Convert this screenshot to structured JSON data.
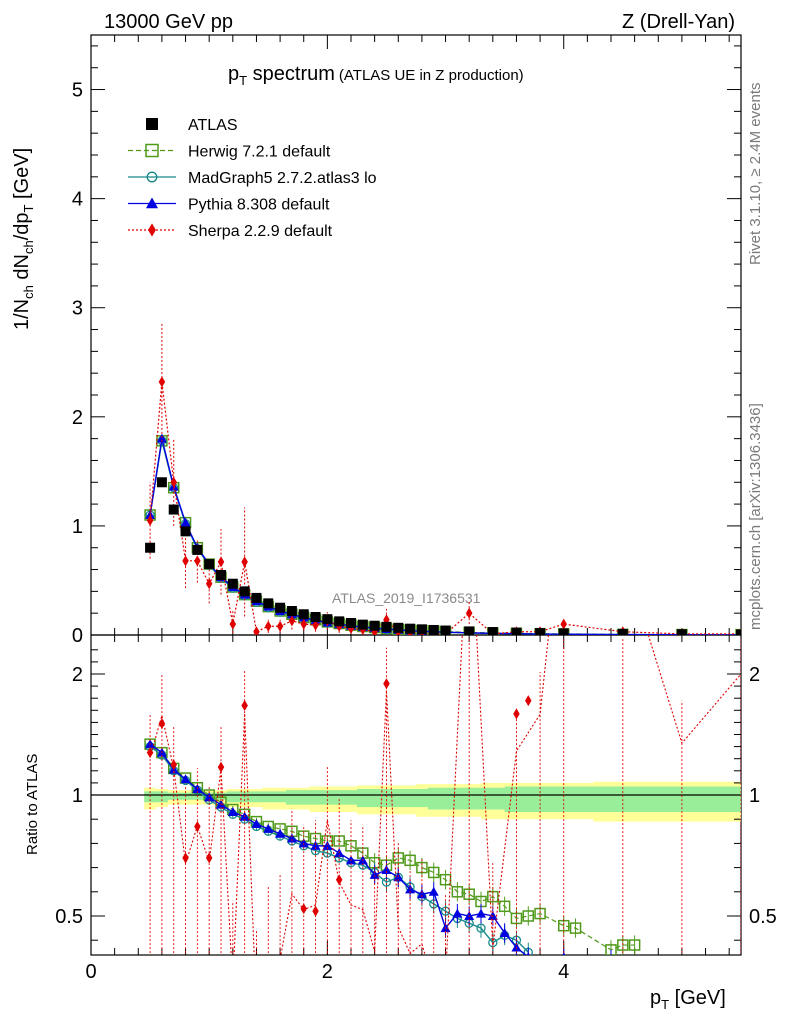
{
  "header": {
    "left": "13000 GeV pp",
    "right": "Z (Drell-Yan)"
  },
  "title": {
    "main": "p",
    "main_sub": "T",
    "main_rest": " spectrum",
    "aside": "(ATLAS UE in Z production)"
  },
  "side_labels": {
    "rivet": "Rivet 3.1.10, ≥ 2.4M events",
    "mcplots": "mcplots.cern.ch [arXiv:1306.3436]"
  },
  "watermark": "ATLAS_2019_I1736531",
  "axes": {
    "ylabel_top": "1/N_ch dN_ch/dp_T [GeV]",
    "ylabel_bottom": "Ratio to ATLAS",
    "xlabel": "p_T [GeV]"
  },
  "legend": [
    {
      "label": "ATLAS",
      "color": "#000000",
      "marker": "square-filled",
      "line": "none"
    },
    {
      "label": "Herwig 7.2.1 default",
      "color": "#4f9a1a",
      "marker": "square-open",
      "line": "dashed"
    },
    {
      "label": "MadGraph5 2.7.2.atlas3 lo",
      "color": "#178a8a",
      "marker": "circle-open",
      "line": "solid"
    },
    {
      "label": "Pythia 8.308 default",
      "color": "#0000e0",
      "marker": "triangle-filled",
      "line": "solid"
    },
    {
      "label": "Sherpa 2.2.9 default",
      "color": "#e00000",
      "marker": "diamond-filled",
      "line": "dotted"
    }
  ],
  "chart_data": {
    "type": "line",
    "xlim": [
      0,
      5.5
    ],
    "top_panel": {
      "ylim": [
        0,
        5.5
      ],
      "yticks": [
        "0",
        "1",
        "2",
        "3",
        "4",
        "5"
      ],
      "xticks": [
        "0",
        "2",
        "4"
      ],
      "x": [
        0.5,
        0.6,
        0.7,
        0.8,
        0.9,
        1.0,
        1.1,
        1.2,
        1.3,
        1.4,
        1.5,
        1.6,
        1.7,
        1.8,
        1.9,
        2.0,
        2.1,
        2.2,
        2.3,
        2.4,
        2.5,
        2.6,
        2.7,
        2.8,
        2.9,
        3.0,
        3.2,
        3.4,
        3.6,
        3.8,
        4.0,
        4.5,
        5.0,
        5.5
      ],
      "series": [
        {
          "name": "ATLAS",
          "values": [
            0.8,
            1.4,
            1.15,
            0.95,
            0.78,
            0.65,
            0.55,
            0.47,
            0.4,
            0.34,
            0.29,
            0.25,
            0.22,
            0.19,
            0.165,
            0.145,
            0.125,
            0.11,
            0.095,
            0.085,
            0.075,
            0.066,
            0.058,
            0.052,
            0.046,
            0.041,
            0.033,
            0.027,
            0.022,
            0.018,
            0.015,
            0.01,
            0.007,
            0.005
          ]
        },
        {
          "name": "Herwig 7.2.1 default",
          "values": [
            1.1,
            1.78,
            1.35,
            1.03,
            0.8,
            0.65,
            0.53,
            0.44,
            0.37,
            0.31,
            0.26,
            0.22,
            0.19,
            0.16,
            0.14,
            0.12,
            0.105,
            0.09,
            0.078,
            0.068,
            0.06,
            0.052,
            0.045,
            0.04,
            0.035,
            0.031,
            0.024,
            0.019,
            0.015,
            0.012,
            0.01,
            0.006,
            0.004,
            0.003
          ]
        },
        {
          "name": "MadGraph5 2.7.2.atlas3 lo",
          "values": [
            1.1,
            1.78,
            1.35,
            1.02,
            0.79,
            0.64,
            0.52,
            0.43,
            0.36,
            0.3,
            0.25,
            0.21,
            0.18,
            0.155,
            0.13,
            0.11,
            0.095,
            0.082,
            0.07,
            0.06,
            0.052,
            0.044,
            0.038,
            0.033,
            0.029,
            0.025,
            0.019,
            0.014,
            0.011,
            0.008,
            0.006,
            0.003,
            0.002,
            0.001
          ]
        },
        {
          "name": "Pythia 8.308 default",
          "values": [
            1.1,
            1.8,
            1.36,
            1.03,
            0.8,
            0.65,
            0.53,
            0.44,
            0.37,
            0.31,
            0.26,
            0.22,
            0.19,
            0.16,
            0.135,
            0.115,
            0.098,
            0.085,
            0.073,
            0.063,
            0.055,
            0.047,
            0.04,
            0.035,
            0.03,
            0.026,
            0.02,
            0.015,
            0.012,
            0.009,
            0.007,
            0.004,
            0.002,
            0.001
          ]
        },
        {
          "name": "Sherpa 2.2.9 default",
          "values": [
            1.05,
            2.32,
            1.4,
            0.68,
            0.68,
            0.47,
            0.67,
            0.1,
            0.67,
            0.03,
            0.08,
            0.08,
            0.13,
            0.1,
            0.09,
            0.13,
            0.08,
            0.06,
            0.05,
            0.03,
            0.14,
            0.03,
            0.02,
            0.02,
            0.01,
            0.01,
            0.2,
            0.01,
            0.03,
            0.03,
            0.1,
            0.03,
            0.01,
            0.01
          ]
        }
      ],
      "sherpa_errors": [
        0.35,
        0.55,
        0.4,
        0.25,
        0.2,
        0.18,
        0.3,
        0.12,
        0.5,
        0.05,
        0.06,
        0.06,
        0.08,
        0.06,
        0.06,
        0.08,
        0.06,
        0.04,
        0.04,
        0.03,
        0.1,
        0.03,
        0.02,
        0.02,
        0.01,
        0.01,
        0.1,
        0.01,
        0.02,
        0.02,
        0.05,
        0.02,
        0.01,
        0.01
      ]
    },
    "ratio_panel": {
      "ylim": [
        0.33,
        2.3
      ],
      "yticks": [
        "0.5",
        "1",
        "2"
      ],
      "xticks": [
        "0",
        "2",
        "4"
      ],
      "band_outer": [
        0.94,
        0.95,
        0.96,
        0.96,
        0.96,
        0.96,
        0.96,
        0.95,
        0.95,
        0.95,
        0.94,
        0.94,
        0.94,
        0.94,
        0.93,
        0.93,
        0.93,
        0.93,
        0.92,
        0.92,
        0.92,
        0.92,
        0.92,
        0.91,
        0.91,
        0.91,
        0.91,
        0.9,
        0.9,
        0.9,
        0.9,
        0.89,
        0.89,
        0.89
      ],
      "band_inner": [
        0.97,
        0.97,
        0.98,
        0.98,
        0.98,
        0.98,
        0.98,
        0.97,
        0.97,
        0.97,
        0.97,
        0.97,
        0.96,
        0.96,
        0.96,
        0.96,
        0.96,
        0.96,
        0.95,
        0.95,
        0.95,
        0.95,
        0.95,
        0.95,
        0.94,
        0.94,
        0.94,
        0.94,
        0.93,
        0.93,
        0.93,
        0.93,
        0.93,
        0.93
      ],
      "series": [
        {
          "name": "Herwig 7.2.1 default",
          "x": [
            0.5,
            0.6,
            0.7,
            0.8,
            0.9,
            1.0,
            1.1,
            1.2,
            1.3,
            1.4,
            1.5,
            1.6,
            1.7,
            1.8,
            1.9,
            2.0,
            2.1,
            2.2,
            2.3,
            2.4,
            2.5,
            2.6,
            2.7,
            2.8,
            2.9,
            3.0,
            3.1,
            3.2,
            3.3,
            3.4,
            3.5,
            3.6,
            3.7,
            3.8,
            4.0,
            4.1,
            4.4,
            4.5,
            4.6
          ],
          "values": [
            1.42,
            1.35,
            1.22,
            1.14,
            1.06,
            1.0,
            0.97,
            0.94,
            0.92,
            0.89,
            0.87,
            0.86,
            0.85,
            0.83,
            0.82,
            0.81,
            0.81,
            0.79,
            0.76,
            0.72,
            0.71,
            0.74,
            0.73,
            0.7,
            0.68,
            0.65,
            0.6,
            0.59,
            0.56,
            0.58,
            0.54,
            0.49,
            0.5,
            0.51,
            0.46,
            0.45,
            0.36,
            0.38,
            0.38
          ]
        },
        {
          "name": "MadGraph5 2.7.2.atlas3 lo",
          "x": [
            0.5,
            0.6,
            0.7,
            0.8,
            0.9,
            1.0,
            1.1,
            1.2,
            1.3,
            1.4,
            1.5,
            1.6,
            1.7,
            1.8,
            1.9,
            2.0,
            2.1,
            2.2,
            2.3,
            2.4,
            2.5,
            2.6,
            2.7,
            2.8,
            2.9,
            3.0,
            3.1,
            3.2,
            3.3,
            3.4,
            3.5,
            3.6,
            3.7
          ],
          "values": [
            1.4,
            1.33,
            1.2,
            1.12,
            1.04,
            0.98,
            0.95,
            0.92,
            0.9,
            0.87,
            0.85,
            0.83,
            0.81,
            0.79,
            0.77,
            0.76,
            0.74,
            0.72,
            0.71,
            0.68,
            0.64,
            0.66,
            0.62,
            0.58,
            0.55,
            0.52,
            0.49,
            0.47,
            0.45,
            0.39,
            0.42,
            0.4,
            0.35
          ]
        },
        {
          "name": "Pythia 8.308 default",
          "x": [
            0.5,
            0.6,
            0.7,
            0.8,
            0.9,
            1.0,
            1.1,
            1.2,
            1.3,
            1.4,
            1.5,
            1.6,
            1.7,
            1.8,
            1.9,
            2.0,
            2.1,
            2.2,
            2.3,
            2.4,
            2.5,
            2.6,
            2.7,
            2.8,
            2.9,
            3.0,
            3.1,
            3.2,
            3.3,
            3.4,
            3.5,
            3.6,
            3.7,
            4.0,
            4.4
          ],
          "values": [
            1.42,
            1.35,
            1.21,
            1.13,
            1.05,
            0.99,
            0.96,
            0.93,
            0.91,
            0.88,
            0.86,
            0.84,
            0.82,
            0.8,
            0.79,
            0.79,
            0.76,
            0.73,
            0.73,
            0.67,
            0.69,
            0.66,
            0.61,
            0.59,
            0.6,
            0.45,
            0.51,
            0.5,
            0.51,
            0.5,
            0.43,
            0.37,
            0.33,
            0.33,
            0.32
          ]
        },
        {
          "name": "Sherpa 2.2.9 default",
          "x": [
            0.5,
            0.6,
            0.7,
            0.8,
            0.9,
            1.0,
            1.1,
            1.3,
            1.8,
            1.9,
            2.1,
            2.5,
            3.6,
            3.7
          ],
          "values": [
            1.35,
            1.59,
            1.25,
            0.74,
            0.87,
            0.74,
            1.23,
            1.74,
            0.53,
            0.52,
            0.65,
            1.92,
            1.67,
            1.78
          ]
        }
      ]
    }
  }
}
